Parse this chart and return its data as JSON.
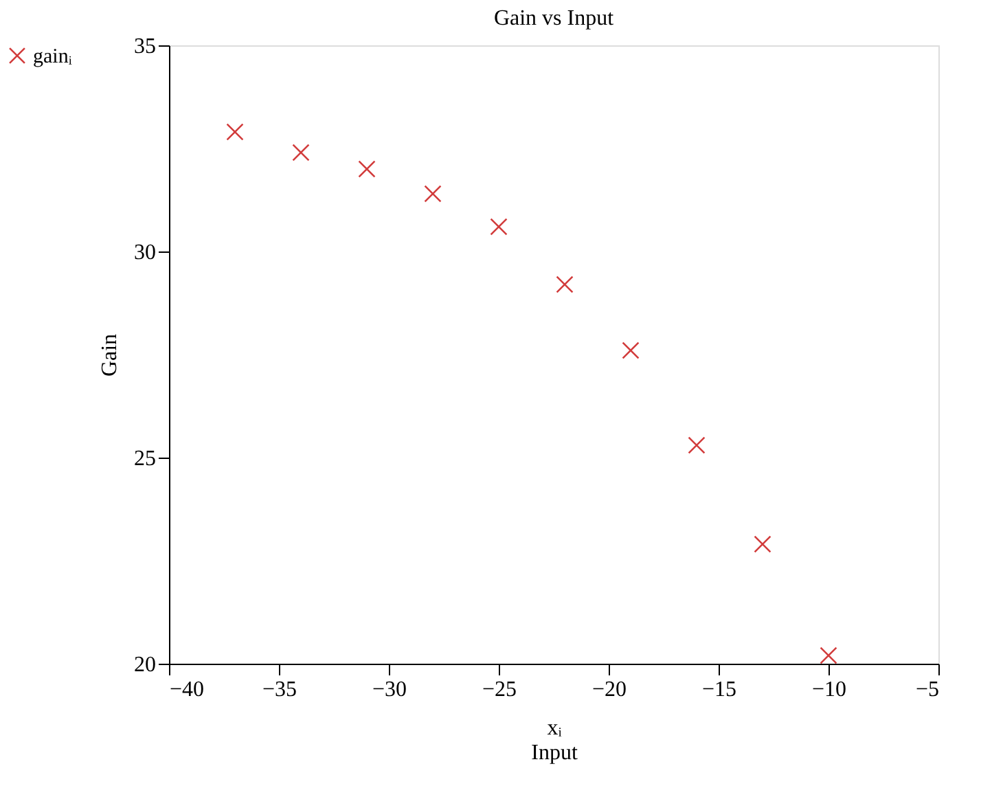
{
  "chart_data": {
    "type": "scatter",
    "title": "Gain vs Input",
    "xlabel": "xᵢ\nInput",
    "ylabel": "Gain",
    "x": [
      -37,
      -34,
      -31,
      -28,
      -25,
      -22,
      -19,
      -16,
      -13,
      -10
    ],
    "series": [
      {
        "name": "gainᵢ",
        "color": "#d23c3c",
        "values": [
          32.9,
          32.4,
          32.0,
          31.4,
          30.6,
          29.2,
          27.6,
          25.3,
          22.9,
          20.2
        ]
      }
    ],
    "xlim": [
      -40,
      -5
    ],
    "xticks": [
      -40,
      -35,
      -30,
      -25,
      -20,
      -15,
      -10,
      -5
    ],
    "ylim": [
      20,
      35
    ],
    "yticks": [
      20,
      25,
      30,
      35
    ],
    "grid": false,
    "legend": "left",
    "marker": "cross"
  }
}
